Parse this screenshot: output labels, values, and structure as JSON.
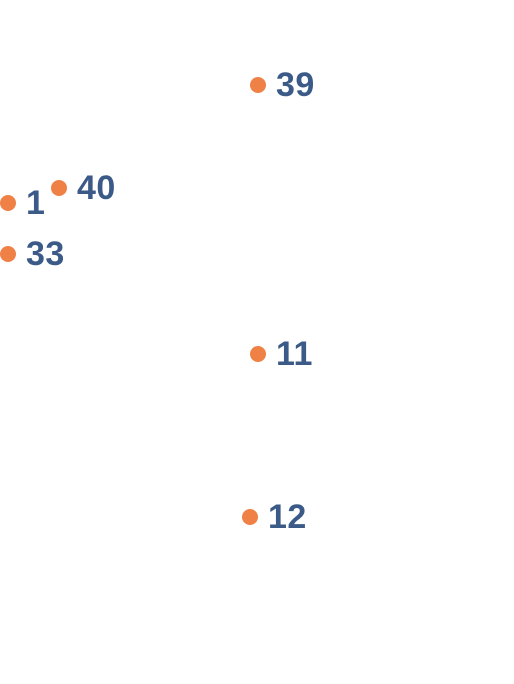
{
  "colors": {
    "marker": "#F08146",
    "label": "#3B5A87",
    "background": "#FFFFFF"
  },
  "points": [
    {
      "label": "1"
    },
    {
      "label": "40"
    },
    {
      "label": "39"
    },
    {
      "label": "33"
    },
    {
      "label": "11"
    },
    {
      "label": "12"
    }
  ]
}
